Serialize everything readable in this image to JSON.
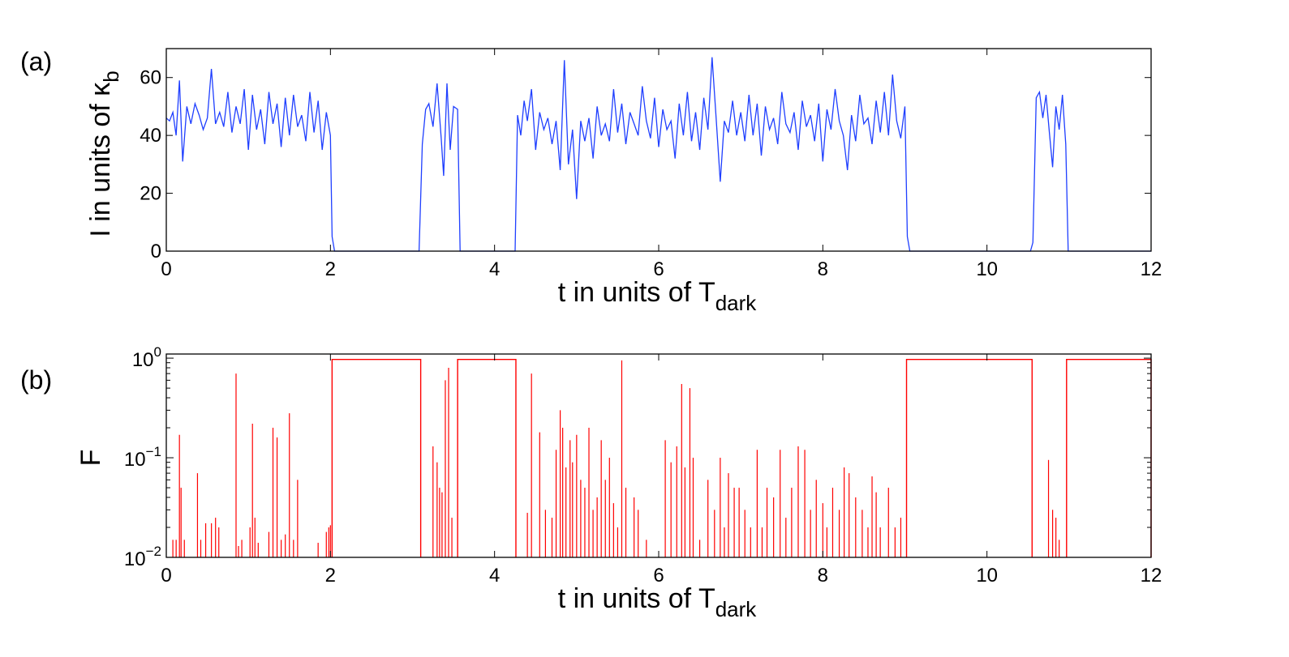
{
  "chart_data": [
    {
      "type": "line",
      "panel_label": "(a)",
      "xlabel_main": "t in units of T",
      "xlabel_sub": "dark",
      "ylabel_main": "I in units of κ",
      "ylabel_sub": "b",
      "xlim": [
        0,
        12
      ],
      "ylim": [
        0,
        70
      ],
      "xticks": [
        0,
        2,
        4,
        6,
        8,
        10,
        12
      ],
      "yticks": [
        0,
        20,
        40,
        60
      ],
      "grid": false,
      "color": "#1f3fff",
      "bright_intervals": [
        [
          0,
          2.02
        ],
        [
          3.1,
          3.55
        ],
        [
          4.26,
          9.02
        ],
        [
          10.55,
          10.97
        ]
      ],
      "series": [
        {
          "x": [
            0,
            0.04,
            0.08,
            0.12,
            0.16,
            0.2,
            0.25,
            0.3,
            0.35,
            0.4,
            0.45,
            0.5,
            0.55,
            0.6,
            0.65,
            0.7,
            0.75,
            0.8,
            0.85,
            0.9,
            0.95,
            1.0,
            1.05,
            1.1,
            1.15,
            1.2,
            1.25,
            1.3,
            1.35,
            1.4,
            1.45,
            1.5,
            1.55,
            1.6,
            1.65,
            1.7,
            1.75,
            1.8,
            1.85,
            1.9,
            1.95,
            2.0,
            2.02,
            2.05,
            3.08,
            3.12,
            3.16,
            3.2,
            3.25,
            3.3,
            3.35,
            3.38,
            3.42,
            3.46,
            3.5,
            3.55,
            3.58,
            4.25,
            4.28,
            4.32,
            4.36,
            4.4,
            4.45,
            4.5,
            4.55,
            4.6,
            4.65,
            4.7,
            4.75,
            4.8,
            4.85,
            4.9,
            4.95,
            5.0,
            5.05,
            5.1,
            5.15,
            5.2,
            5.25,
            5.3,
            5.35,
            5.4,
            5.45,
            5.5,
            5.55,
            5.6,
            5.65,
            5.7,
            5.75,
            5.8,
            5.85,
            5.9,
            5.95,
            6.0,
            6.05,
            6.1,
            6.15,
            6.2,
            6.25,
            6.3,
            6.35,
            6.4,
            6.45,
            6.5,
            6.55,
            6.6,
            6.65,
            6.7,
            6.75,
            6.8,
            6.85,
            6.9,
            6.95,
            7.0,
            7.05,
            7.1,
            7.15,
            7.2,
            7.25,
            7.3,
            7.35,
            7.4,
            7.45,
            7.5,
            7.55,
            7.6,
            7.65,
            7.7,
            7.75,
            7.8,
            7.85,
            7.9,
            7.95,
            8.0,
            8.05,
            8.1,
            8.15,
            8.2,
            8.25,
            8.3,
            8.35,
            8.4,
            8.45,
            8.5,
            8.55,
            8.6,
            8.65,
            8.7,
            8.75,
            8.8,
            8.85,
            8.9,
            8.95,
            9.0,
            9.03,
            9.06,
            10.53,
            10.56,
            10.6,
            10.64,
            10.68,
            10.72,
            10.76,
            10.8,
            10.84,
            10.88,
            10.92,
            10.96,
            10.99,
            12
          ],
          "y": [
            46,
            45,
            48,
            40,
            59,
            31,
            50,
            44,
            51,
            47,
            42,
            46,
            63,
            44,
            48,
            43,
            55,
            41,
            50,
            44,
            56,
            35,
            54,
            42,
            49,
            37,
            55,
            44,
            51,
            36,
            53,
            40,
            54,
            43,
            47,
            38,
            55,
            41,
            52,
            35,
            48,
            40,
            5,
            0,
            0,
            37,
            49,
            51,
            43,
            58,
            39,
            26,
            58,
            35,
            50,
            49,
            0,
            0,
            47,
            40,
            52,
            45,
            56,
            35,
            48,
            42,
            46,
            37,
            45,
            28,
            66,
            30,
            42,
            18,
            45,
            38,
            46,
            32,
            50,
            40,
            44,
            38,
            56,
            41,
            51,
            37,
            48,
            44,
            40,
            57,
            45,
            39,
            53,
            36,
            49,
            42,
            45,
            32,
            51,
            40,
            55,
            38,
            48,
            35,
            53,
            42,
            67,
            46,
            24,
            45,
            41,
            52,
            40,
            48,
            38,
            54,
            40,
            51,
            33,
            50,
            42,
            46,
            37,
            55,
            44,
            41,
            48,
            35,
            52,
            43,
            47,
            38,
            51,
            31,
            49,
            42,
            56,
            45,
            40,
            28,
            47,
            38,
            54,
            44,
            46,
            37,
            52,
            41,
            55,
            40,
            61,
            45,
            39,
            50,
            5,
            0,
            0,
            3,
            53,
            55,
            46,
            54,
            41,
            29,
            50,
            42,
            54,
            37,
            0,
            0
          ]
        }
      ]
    },
    {
      "type": "line",
      "panel_label": "(b)",
      "xlabel_main": "t in units of T",
      "xlabel_sub": "dark",
      "ylabel": "F",
      "xlim": [
        0,
        12
      ],
      "ylim": [
        0.01,
        1.1
      ],
      "yscale": "log",
      "xticks": [
        0,
        2,
        4,
        6,
        8,
        10,
        12
      ],
      "yticks": [
        {
          "value": 0.01,
          "base": "10",
          "exp": "−2"
        },
        {
          "value": 0.1,
          "base": "10",
          "exp": "−1"
        },
        {
          "value": 1,
          "base": "10",
          "exp": "0"
        }
      ],
      "grid": false,
      "color": "#ff0000",
      "plateau_value": 0.97,
      "plateaus": [
        [
          2.02,
          3.1
        ],
        [
          3.55,
          4.26
        ],
        [
          9.02,
          10.55
        ],
        [
          10.97,
          12
        ]
      ],
      "spikes": {
        "t": [
          0.08,
          0.12,
          0.16,
          0.18,
          0.22,
          0.38,
          0.42,
          0.48,
          0.55,
          0.6,
          0.64,
          0.85,
          0.88,
          0.92,
          1.02,
          1.05,
          1.08,
          1.12,
          1.25,
          1.3,
          1.35,
          1.4,
          1.45,
          1.5,
          1.55,
          1.6,
          1.85,
          1.95,
          1.98,
          2.0,
          3.25,
          3.3,
          3.33,
          3.36,
          3.4,
          3.44,
          3.48,
          4.4,
          4.45,
          4.55,
          4.62,
          4.7,
          4.75,
          4.8,
          4.83,
          4.87,
          4.92,
          4.95,
          5.0,
          5.05,
          5.1,
          5.15,
          5.2,
          5.25,
          5.3,
          5.35,
          5.4,
          5.45,
          5.5,
          5.55,
          5.6,
          5.7,
          5.75,
          5.85,
          6.08,
          6.15,
          6.22,
          6.28,
          6.32,
          6.38,
          6.42,
          6.5,
          6.6,
          6.68,
          6.75,
          6.8,
          6.85,
          6.92,
          6.98,
          7.05,
          7.12,
          7.2,
          7.26,
          7.32,
          7.4,
          7.48,
          7.55,
          7.62,
          7.7,
          7.78,
          7.85,
          7.92,
          8.0,
          8.05,
          8.12,
          8.2,
          8.26,
          8.32,
          8.4,
          8.48,
          8.55,
          8.6,
          8.65,
          8.7,
          8.8,
          8.88,
          8.95
        ],
        "F": [
          0.015,
          0.015,
          0.17,
          0.05,
          0.015,
          0.07,
          0.015,
          0.022,
          0.022,
          0.025,
          0.02,
          0.7,
          0.013,
          0.015,
          0.02,
          0.22,
          0.025,
          0.014,
          0.018,
          0.2,
          0.16,
          0.015,
          0.017,
          0.28,
          0.015,
          0.06,
          0.014,
          0.018,
          0.02,
          0.021,
          0.13,
          0.09,
          0.05,
          0.045,
          0.6,
          0.8,
          0.025,
          0.028,
          0.7,
          0.18,
          0.03,
          0.025,
          0.12,
          0.3,
          0.2,
          0.08,
          0.15,
          0.09,
          0.17,
          0.06,
          0.05,
          0.2,
          0.03,
          0.04,
          0.15,
          0.06,
          0.1,
          0.035,
          0.02,
          0.95,
          0.05,
          0.04,
          0.03,
          0.015,
          0.15,
          0.09,
          0.13,
          0.55,
          0.08,
          0.5,
          0.1,
          0.015,
          0.06,
          0.03,
          0.1,
          0.02,
          0.07,
          0.05,
          0.05,
          0.03,
          0.02,
          0.12,
          0.02,
          0.05,
          0.04,
          0.12,
          0.025,
          0.05,
          0.13,
          0.12,
          0.03,
          0.06,
          0.035,
          0.02,
          0.05,
          0.03,
          0.08,
          0.07,
          0.04,
          0.03,
          0.02,
          0.065,
          0.045,
          0.02,
          0.05,
          0.02,
          0.025
        ]
      },
      "spikes_bright2": {
        "t": [
          10.75,
          10.8,
          10.84,
          10.88
        ],
        "F": [
          0.095,
          0.03,
          0.025,
          0.015
        ]
      }
    }
  ]
}
